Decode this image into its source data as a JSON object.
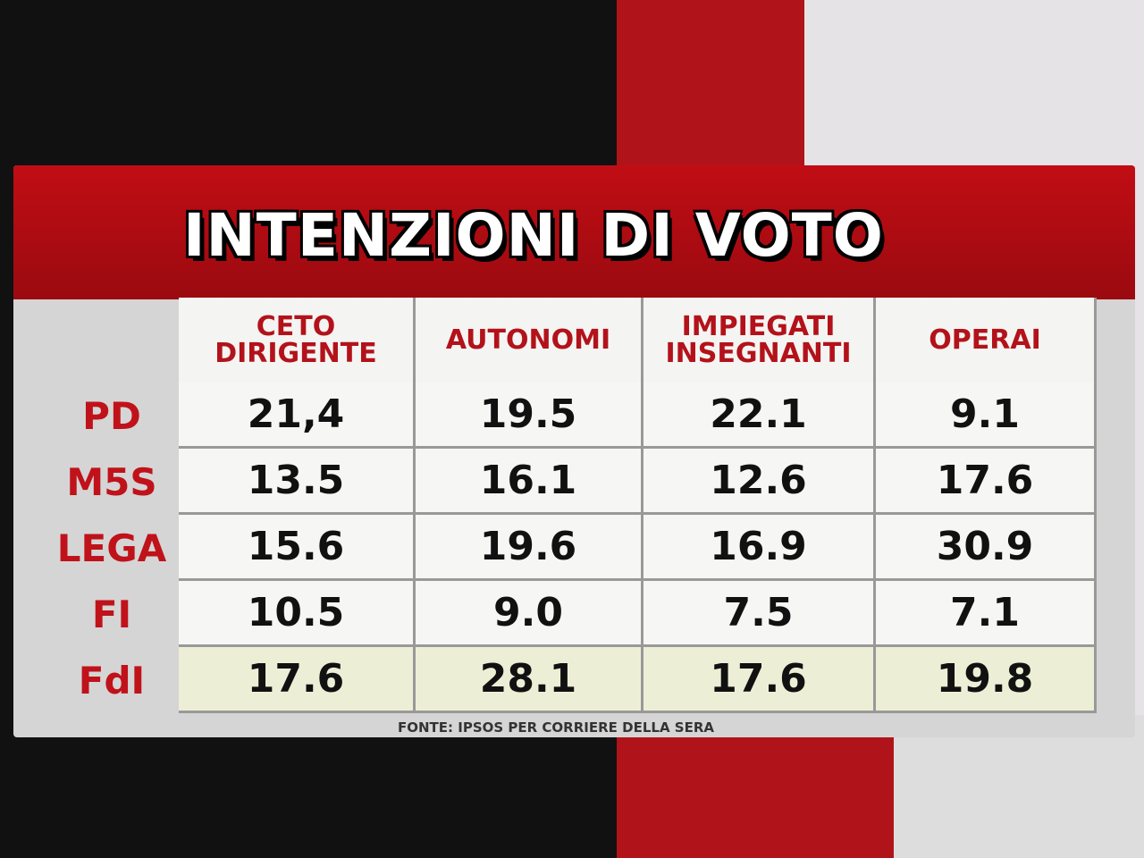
{
  "header": {
    "title": "INTENZIONI DI VOTO"
  },
  "table": {
    "columns": [
      "CETO DIRIGENTE",
      "AUTONOMI",
      "IMPIEGATI INSEGNANTI",
      "OPERAI"
    ],
    "rows": [
      [
        "PD",
        "21,4",
        "19.5",
        "22.1",
        "9.1"
      ],
      [
        "M5S",
        "13.5",
        "16.1",
        "12.6",
        "17.6"
      ],
      [
        "LEGA",
        "15.6",
        "19.6",
        "16.9",
        "30.9"
      ],
      [
        "FI",
        "10.5",
        "9.0",
        "7.5",
        "7.1"
      ],
      [
        "FdI",
        "17.6",
        "28.1",
        "17.6",
        "19.8"
      ]
    ]
  },
  "footer": {
    "source": "FONTE: IPSOS PER CORRIERE DELLA SERA"
  }
}
